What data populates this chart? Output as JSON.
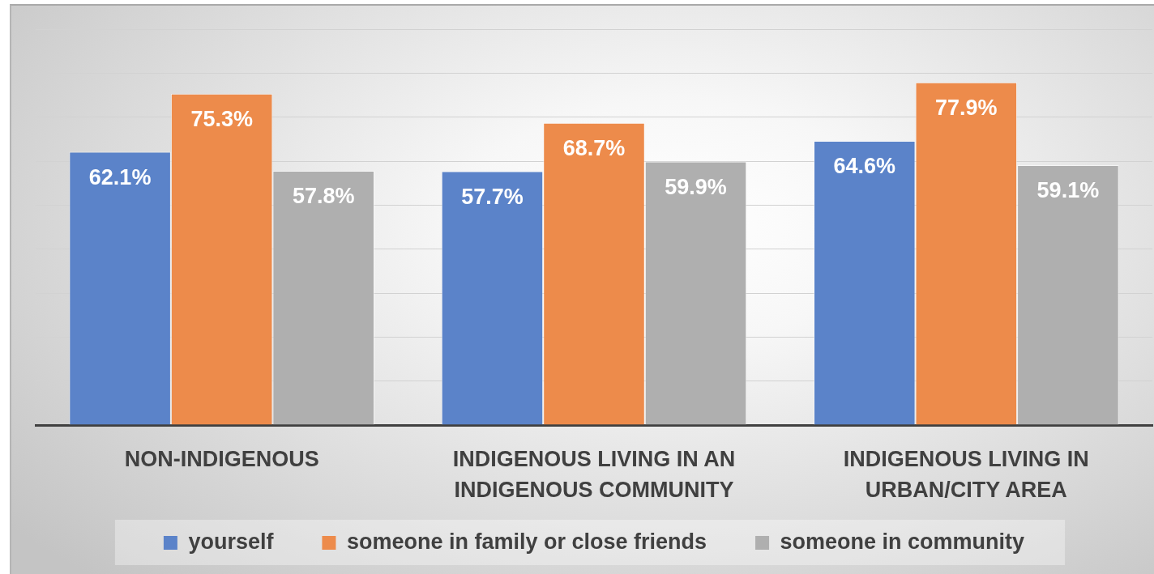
{
  "chart_data": {
    "type": "bar",
    "categories": [
      "NON-INDIGENOUS",
      "INDIGENOUS LIVING IN AN INDIGENOUS COMMUNITY",
      "INDIGENOUS LIVING IN URBAN/CITY AREA"
    ],
    "series": [
      {
        "name": "yourself",
        "color": "#5b83c9",
        "values": [
          62.1,
          57.7,
          64.6
        ],
        "value_labels": [
          "62.1%",
          "57.7%",
          "64.6%"
        ]
      },
      {
        "name": "someone in family or close friends",
        "color": "#ed8b4b",
        "values": [
          75.3,
          68.7,
          77.9
        ],
        "value_labels": [
          "75.3%",
          "68.7%",
          "77.9%"
        ]
      },
      {
        "name": "someone in community",
        "color": "#afafaf",
        "values": [
          57.8,
          59.9,
          59.1
        ],
        "value_labels": [
          "57.8%",
          "59.9%",
          "59.1%"
        ]
      }
    ],
    "ylim": [
      0,
      90
    ],
    "yticks": [
      0,
      10,
      20,
      30,
      40,
      50,
      60,
      70,
      80,
      90
    ],
    "grid": "y",
    "legend": "bottom",
    "tick_labels": "x"
  }
}
